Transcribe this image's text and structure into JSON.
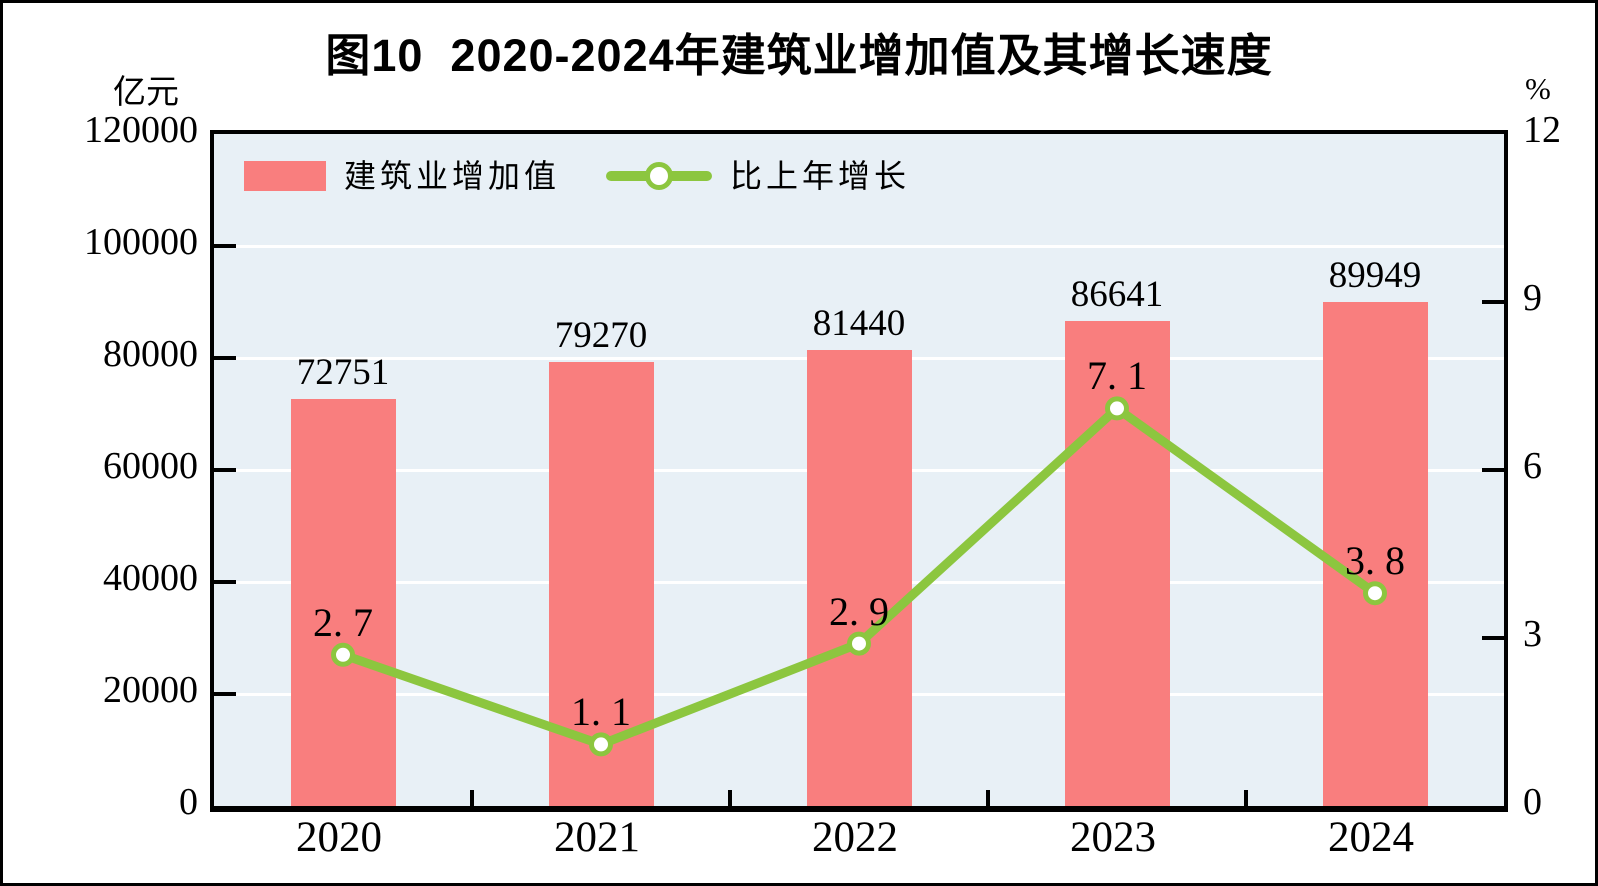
{
  "title": "图10  2020-2024年建筑业增加值及其增长速度",
  "left_axis_unit": "亿元",
  "right_axis_unit": "%",
  "legend": {
    "items": [
      {
        "label": "建筑业增加值",
        "type": "bar"
      },
      {
        "label": "比上年增长",
        "type": "line"
      }
    ]
  },
  "colors": {
    "bar": "#F97E7E",
    "line": "#8CC63F",
    "marker_fill": "#FFFFFF",
    "plot_background": "#E8F0F6",
    "grid": "#FFFFFF",
    "text": "#000000"
  },
  "chart_data": {
    "type": "bar",
    "subtype": "combo-bar-line",
    "title": "图10  2020-2024年建筑业增加值及其增长速度",
    "categories": [
      "2020",
      "2021",
      "2022",
      "2023",
      "2024"
    ],
    "series": [
      {
        "name": "建筑业增加值",
        "type": "bar",
        "axis": "left",
        "unit": "亿元",
        "values": [
          72751,
          79270,
          81440,
          86641,
          89949
        ],
        "labels": [
          "72751",
          "79270",
          "81440",
          "86641",
          "89949"
        ],
        "color": "#F97E7E"
      },
      {
        "name": "比上年增长",
        "type": "line",
        "axis": "right",
        "unit": "%",
        "values": [
          2.7,
          1.1,
          2.9,
          7.1,
          3.8
        ],
        "labels": [
          "2. 7",
          "1. 1",
          "2. 9",
          "7. 1",
          "3. 8"
        ],
        "color": "#8CC63F",
        "marker_fill": "#FFFFFF"
      }
    ],
    "left_axis": {
      "min": 0,
      "max": 120000,
      "tick_step": 20000,
      "ticks": [
        "0",
        "20000",
        "40000",
        "60000",
        "80000",
        "100000",
        "120000"
      ]
    },
    "right_axis": {
      "min": 0,
      "max": 12,
      "tick_step": 3,
      "ticks": [
        "0",
        "3",
        "6",
        "9",
        "12"
      ],
      "inner_tick_values": [
        3,
        6,
        9
      ]
    },
    "grid": {
      "on": true,
      "step_left": 20000
    },
    "legend_position": "top-left-inside"
  }
}
